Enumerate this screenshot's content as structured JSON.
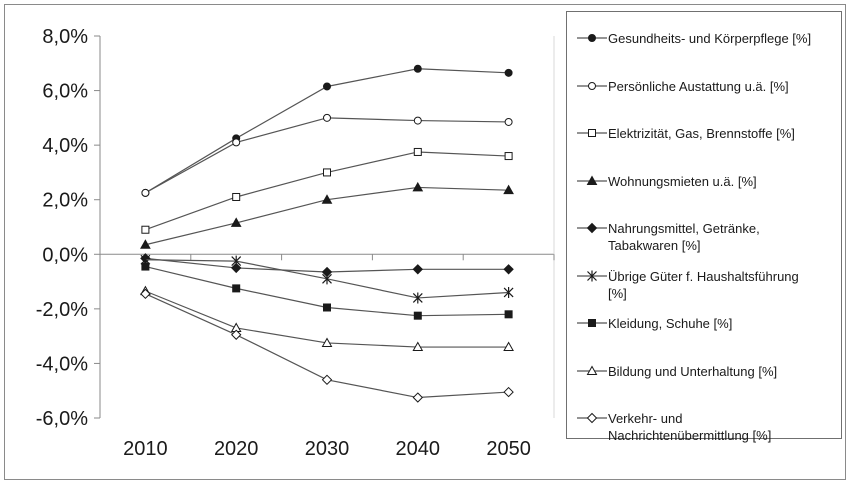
{
  "chart_data": {
    "type": "line",
    "title": "",
    "xlabel": "",
    "ylabel": "",
    "x": [
      2010,
      2020,
      2030,
      2040,
      2050
    ],
    "x_tick_labels": [
      "2010",
      "2020",
      "2030",
      "2040",
      "2050"
    ],
    "ylim": [
      -6.0,
      8.0
    ],
    "y_ticks": [
      8.0,
      6.0,
      4.0,
      2.0,
      0.0,
      -2.0,
      -4.0,
      -6.0
    ],
    "y_tick_labels": [
      "8,0%",
      "6,0%",
      "4,0%",
      "2,0%",
      "0,0%",
      "-2,0%",
      "-4,0%",
      "-6,0%"
    ],
    "grid": false,
    "legend_position": "right",
    "series": [
      {
        "name": "Gesundheits- und Körperpflege [%]",
        "marker": "filled-circle",
        "values": [
          2.25,
          4.25,
          6.15,
          6.8,
          6.65
        ]
      },
      {
        "name": "Persönliche Austattung u.ä.  [%]",
        "marker": "open-circle",
        "values": [
          2.25,
          4.1,
          5.0,
          4.9,
          4.85
        ]
      },
      {
        "name": "Elektrizität, Gas, Brennstoffe [%]",
        "marker": "open-square",
        "values": [
          0.9,
          2.1,
          3.0,
          3.75,
          3.6
        ]
      },
      {
        "name": "Wohnungsmieten u.ä. [%]",
        "marker": "filled-triangle",
        "values": [
          0.35,
          1.15,
          2.0,
          2.45,
          2.35
        ]
      },
      {
        "name": "Nahrungsmittel, Getränke,\nTabakwaren  [%]",
        "marker": "filled-diamond",
        "values": [
          -0.15,
          -0.5,
          -0.65,
          -0.55,
          -0.55
        ]
      },
      {
        "name": "Übrige Güter f. Haushaltsführung\n[%]",
        "marker": "star",
        "values": [
          -0.2,
          -0.25,
          -0.9,
          -1.6,
          -1.4
        ]
      },
      {
        "name": "Kleidung, Schuhe [%]",
        "marker": "filled-square",
        "values": [
          -0.45,
          -1.25,
          -1.95,
          -2.25,
          -2.2
        ]
      },
      {
        "name": "Bildung und Unterhaltung [%]",
        "marker": "open-triangle",
        "values": [
          -1.35,
          -2.7,
          -3.25,
          -3.4,
          -3.4
        ]
      },
      {
        "name": "Verkehr- und\nNachrichtenübermittlung [%]",
        "marker": "open-diamond",
        "values": [
          -1.45,
          -2.95,
          -4.6,
          -5.25,
          -5.05
        ]
      }
    ]
  },
  "colors": {
    "line": "#555555",
    "marker": "#1a1a1a",
    "axis": "#8a8a8a",
    "text": "#1a1a1a"
  }
}
